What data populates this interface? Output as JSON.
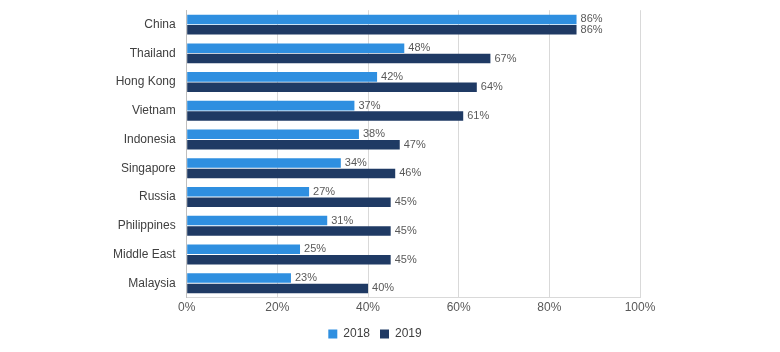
{
  "chart_data": {
    "type": "bar",
    "orientation": "horizontal",
    "categories": [
      "China",
      "Thailand",
      "Hong Kong",
      "Vietnam",
      "Indonesia",
      "Singapore",
      "Russia",
      "Philippines",
      "Middle East",
      "Malaysia"
    ],
    "series": [
      {
        "name": "2018",
        "color": "#2f8fe0",
        "values": [
          86,
          48,
          42,
          37,
          38,
          34,
          27,
          31,
          25,
          23
        ],
        "value_labels": [
          "86%",
          "48%",
          "42%",
          "37%",
          "38%",
          "34%",
          "27%",
          "31%",
          "25%",
          "23%"
        ]
      },
      {
        "name": "2019",
        "color": "#1f3a64",
        "values": [
          86,
          67,
          64,
          61,
          47,
          46,
          45,
          45,
          45,
          40
        ],
        "value_labels": [
          "86%",
          "67%",
          "64%",
          "61%",
          "47%",
          "46%",
          "45%",
          "45%",
          "45%",
          "40%"
        ]
      }
    ],
    "xlim": [
      0,
      100
    ],
    "xticks": [
      {
        "value": 0,
        "label": "0%"
      },
      {
        "value": 20,
        "label": "20%"
      },
      {
        "value": 40,
        "label": "40%"
      },
      {
        "value": 60,
        "label": "60%"
      },
      {
        "value": 80,
        "label": "80%"
      },
      {
        "value": 100,
        "label": "100%"
      }
    ],
    "grid": true,
    "legend": "bottom",
    "data_labels": true
  }
}
